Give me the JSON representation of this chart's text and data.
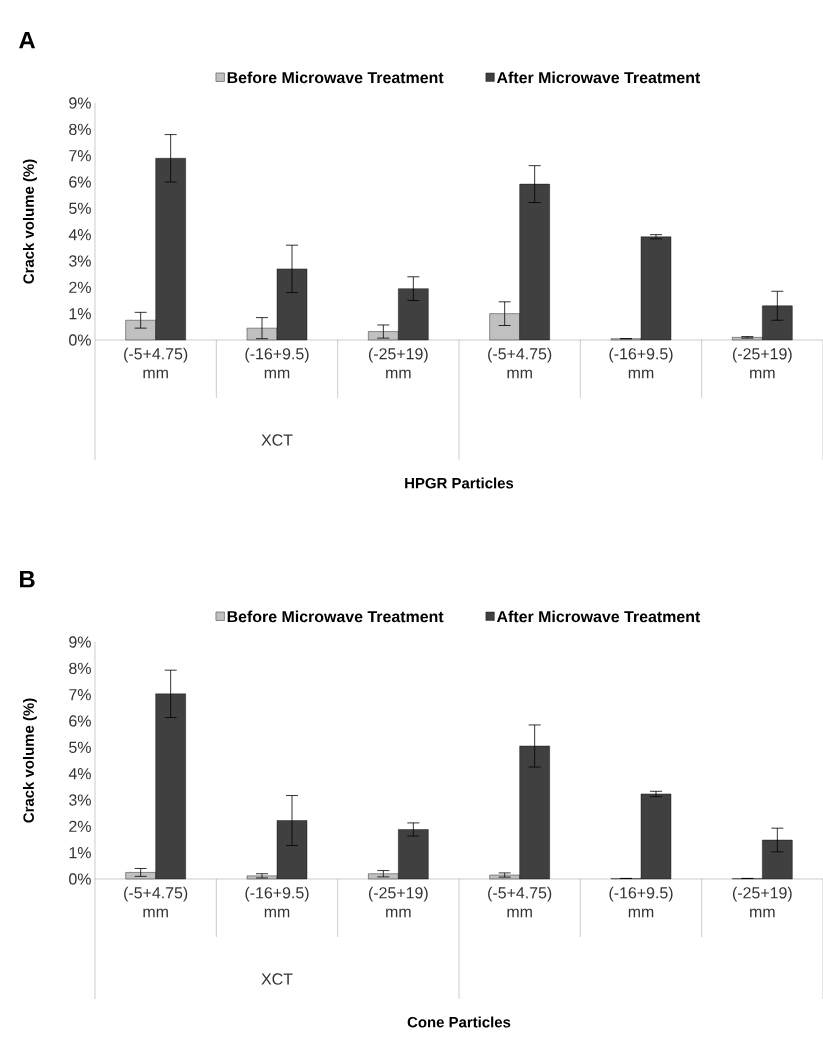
{
  "chart_data": [
    {
      "type": "bar",
      "title": "A",
      "xlabel": "HPGR Particles",
      "ylabel": "Crack volume (%)",
      "categories": [
        "(-5+4.75) mm",
        "(-16+9.5) mm",
        "(-25+19) mm",
        "(-5+4.75) mm",
        "(-16+9.5) mm",
        "(-25+19) mm"
      ],
      "series": [
        {
          "name": "Before Microwave Treatment",
          "color": "#c0c0c0",
          "values": [
            0.75,
            0.45,
            0.32,
            1.0,
            0.05,
            0.1
          ],
          "errors": [
            0.3,
            0.4,
            0.25,
            0.45,
            null,
            0.03
          ]
        },
        {
          "name": "After Microwave Treatment",
          "color": "#404040",
          "values": [
            6.9,
            2.7,
            1.95,
            5.92,
            3.92,
            1.3
          ],
          "errors": [
            0.9,
            0.9,
            0.45,
            0.7,
            0.08,
            0.55
          ]
        }
      ],
      "ylim": [
        0,
        9
      ],
      "yticks": [
        {
          "value": 0,
          "label": "0%"
        },
        {
          "value": 1,
          "label": "1%"
        },
        {
          "value": 2,
          "label": "2%"
        },
        {
          "value": 3,
          "label": "3%"
        },
        {
          "value": 4,
          "label": "4%"
        },
        {
          "value": 5,
          "label": "5%"
        },
        {
          "value": 6,
          "label": "6%"
        },
        {
          "value": 7,
          "label": "7%"
        },
        {
          "value": 8,
          "label": "8%"
        },
        {
          "value": 9,
          "label": "9%"
        }
      ],
      "legend": "top",
      "annotations": [
        "XCT"
      ]
    },
    {
      "type": "bar",
      "title": "B",
      "xlabel": "Cone Particles",
      "ylabel": "Crack volume (%)",
      "categories": [
        "(-5+4.75) mm",
        "(-16+9.5) mm",
        "(-25+19) mm",
        "(-5+4.75) mm",
        "(-16+9.5) mm",
        "(-25+19) mm"
      ],
      "series": [
        {
          "name": "Before Microwave Treatment",
          "color": "#c0c0c0",
          "values": [
            0.25,
            0.12,
            0.2,
            0.15,
            0.02,
            0.02
          ],
          "errors": [
            0.15,
            0.08,
            0.12,
            0.08,
            null,
            null
          ]
        },
        {
          "name": "After Microwave Treatment",
          "color": "#404040",
          "values": [
            7.03,
            2.22,
            1.88,
            5.05,
            3.23,
            1.48
          ],
          "errors": [
            0.9,
            0.95,
            0.25,
            0.8,
            0.1,
            0.45
          ]
        }
      ],
      "ylim": [
        0,
        9
      ],
      "yticks": [
        {
          "value": 0,
          "label": "0%"
        },
        {
          "value": 1,
          "label": "1%"
        },
        {
          "value": 2,
          "label": "2%"
        },
        {
          "value": 3,
          "label": "3%"
        },
        {
          "value": 4,
          "label": "4%"
        },
        {
          "value": 5,
          "label": "5%"
        },
        {
          "value": 6,
          "label": "6%"
        },
        {
          "value": 7,
          "label": "7%"
        },
        {
          "value": 8,
          "label": "8%"
        },
        {
          "value": 9,
          "label": "9%"
        }
      ],
      "legend": "top",
      "annotations": [
        "XCT"
      ]
    }
  ]
}
